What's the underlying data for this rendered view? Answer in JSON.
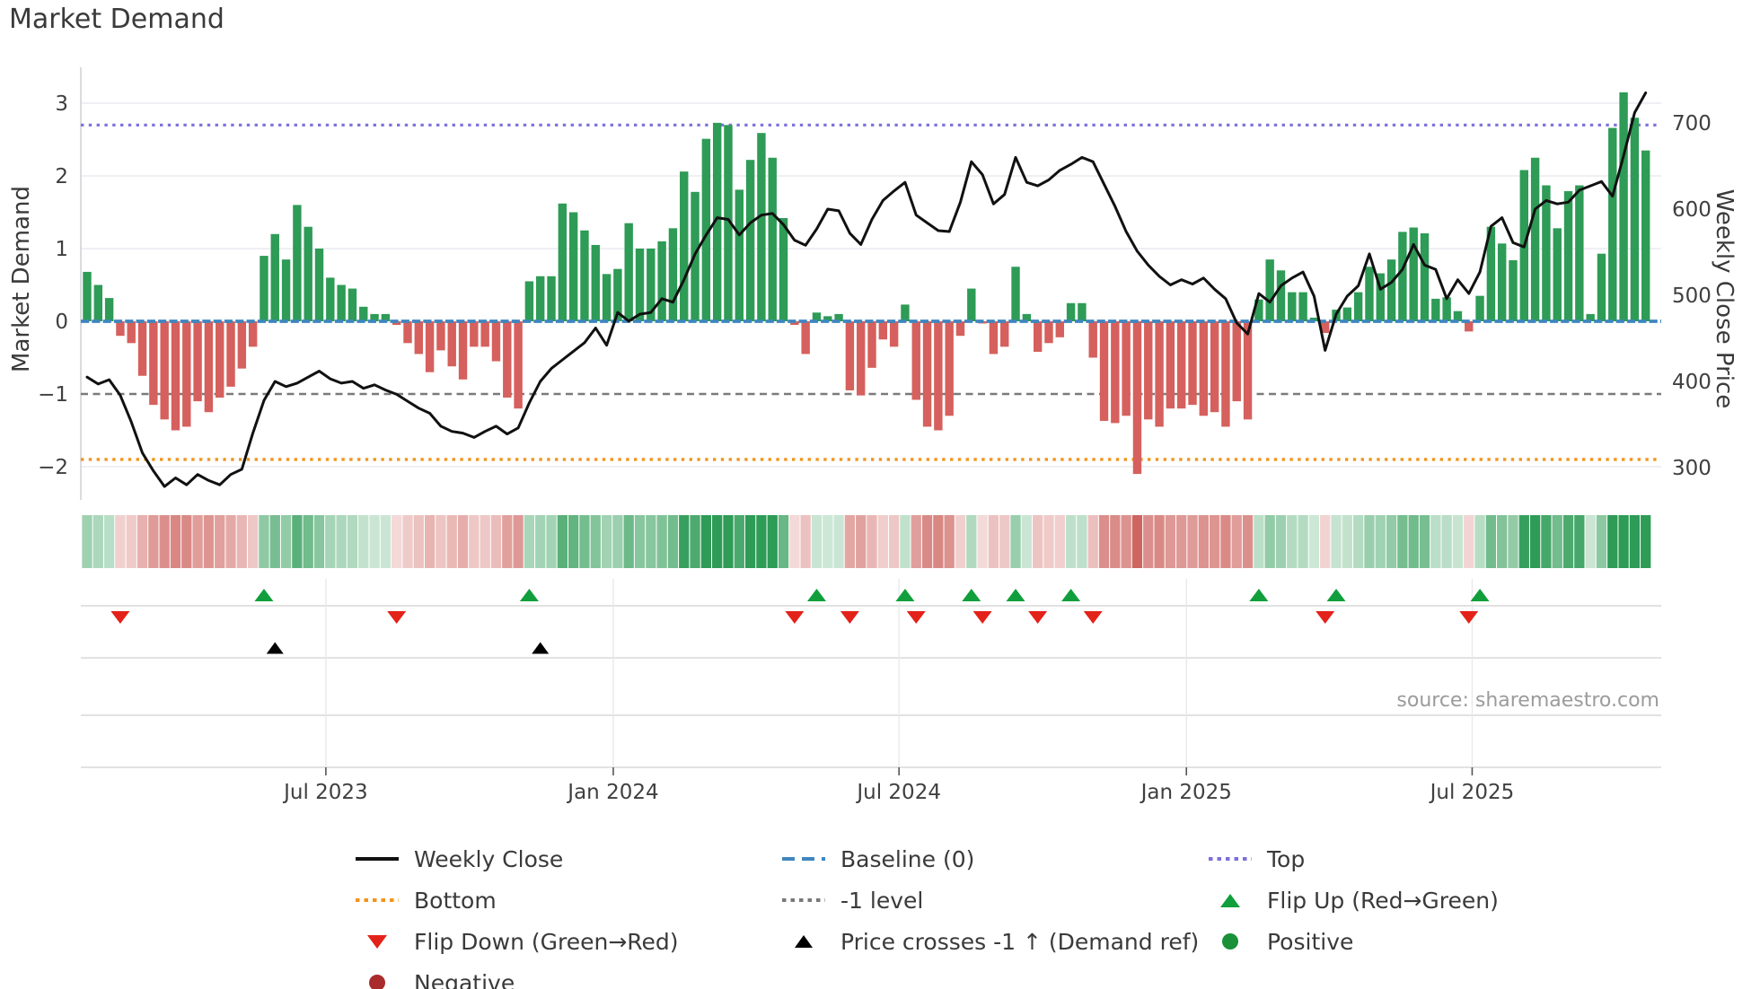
{
  "title": "Market Demand",
  "source": "source: sharemaestro.com",
  "axes": {
    "left_label": "Market Demand",
    "right_label": "Weekly Close Price",
    "left_ticks": [
      "3",
      "2",
      "1",
      "0",
      "−1",
      "−2"
    ],
    "left_tick_values": [
      3,
      2,
      1,
      0,
      -1,
      -2
    ],
    "right_ticks": [
      "700",
      "600",
      "500",
      "400",
      "300"
    ],
    "right_tick_values": [
      700,
      600,
      500,
      400,
      300
    ],
    "x_ticks": [
      "Jul 2023",
      "Jan 2024",
      "Jul 2024",
      "Jan 2025",
      "Jul 2025"
    ]
  },
  "colors": {
    "bar_green": "#2e9b56",
    "bar_red": "#d5605d",
    "price_line": "#111111",
    "baseline": "#3f86c0",
    "top_line": "#7b70da",
    "bottom_line": "#f2941c",
    "minus1_line": "#7a7a7a",
    "flip_up": "#109f3c",
    "flip_down": "#e32219",
    "price_cross": "#000000",
    "positive": "#1a9138",
    "negative": "#aa2b2b",
    "grid": "#eaeaf1",
    "panel_grid": "#d8d8d8",
    "tick_text": "#3f3f3f"
  },
  "legend": {
    "items": [
      {
        "label": "Weekly Close",
        "swatch": "line-black"
      },
      {
        "label": "Bottom",
        "swatch": "dot-orange"
      },
      {
        "label": "Flip Down (Green→Red)",
        "swatch": "tri-down-red"
      },
      {
        "label": "Negative",
        "swatch": "circle-red"
      },
      {
        "label": "Baseline (0)",
        "swatch": "dash-blue"
      },
      {
        "label": "-1 level",
        "swatch": "dot-gray"
      },
      {
        "label": "Price crosses -1 ↑ (Demand ref)",
        "swatch": "tri-up-black"
      },
      {
        "label": "Top",
        "swatch": "dot-purple"
      },
      {
        "label": "Flip Up (Red→Green)",
        "swatch": "tri-up-green"
      },
      {
        "label": "Positive",
        "swatch": "circle-green"
      }
    ]
  },
  "chart_data": {
    "type": "bar+line",
    "title": "Market Demand",
    "ylabel_left": "Market Demand",
    "ylabel_right": "Weekly Close Price",
    "ylim_left": [
      -2.5,
      3.5
    ],
    "ylim_right": [
      260,
      765
    ],
    "x_tick_labels": [
      "Jul 2023",
      "Jan 2024",
      "Jul 2024",
      "Jan 2025",
      "Jul 2025"
    ],
    "x_tick_weeks": [
      21.6,
      47.6,
      73.45,
      99.45,
      125.3
    ],
    "reference_lines": {
      "top": 2.7,
      "baseline": 0,
      "minus1": -1,
      "bottom": -1.9
    },
    "demand": [
      0.68,
      0.5,
      0.32,
      -0.2,
      -0.3,
      -0.75,
      -1.15,
      -1.35,
      -1.5,
      -1.45,
      -1.1,
      -1.25,
      -1.05,
      -0.9,
      -0.65,
      -0.35,
      0.9,
      1.2,
      0.85,
      1.6,
      1.3,
      1.0,
      0.6,
      0.5,
      0.45,
      0.2,
      0.1,
      0.1,
      -0.05,
      -0.3,
      -0.45,
      -0.7,
      -0.4,
      -0.62,
      -0.8,
      -0.35,
      -0.35,
      -0.55,
      -1.05,
      -1.2,
      0.55,
      0.62,
      0.62,
      1.62,
      1.5,
      1.25,
      1.05,
      0.65,
      0.72,
      1.35,
      1.0,
      1.0,
      1.1,
      1.28,
      2.06,
      1.78,
      2.51,
      2.73,
      2.7,
      1.81,
      2.22,
      2.59,
      2.25,
      1.42,
      -0.05,
      -0.45,
      0.12,
      0.07,
      0.1,
      -0.95,
      -1.02,
      -0.64,
      -0.25,
      -0.35,
      0.23,
      -1.08,
      -1.45,
      -1.5,
      -1.3,
      -0.2,
      0.45,
      -0.03,
      -0.45,
      -0.35,
      0.75,
      0.1,
      -0.42,
      -0.3,
      -0.22,
      0.25,
      0.25,
      -0.5,
      -1.37,
      -1.4,
      -1.3,
      -2.1,
      -1.35,
      -1.45,
      -1.2,
      -1.2,
      -1.15,
      -1.3,
      -1.25,
      -1.45,
      -1.1,
      -1.35,
      0.3,
      0.85,
      0.7,
      0.4,
      0.4,
      0.05,
      -0.16,
      0.16,
      0.19,
      0.4,
      0.75,
      0.66,
      0.85,
      1.23,
      1.29,
      1.21,
      0.31,
      0.33,
      0.14,
      -0.14,
      0.35,
      1.3,
      1.07,
      0.84,
      2.08,
      2.25,
      1.87,
      1.28,
      1.79,
      1.87,
      0.1,
      0.93,
      2.66,
      3.15,
      2.8,
      2.35
    ],
    "price": [
      405,
      397,
      402,
      384,
      353,
      317,
      296,
      278,
      288,
      280,
      292,
      285,
      280,
      292,
      298,
      340,
      378,
      400,
      394,
      398,
      405,
      412,
      403,
      398,
      400,
      392,
      396,
      390,
      385,
      377,
      369,
      363,
      348,
      342,
      340,
      335,
      342,
      348,
      339,
      346,
      375,
      400,
      415,
      425,
      435,
      445,
      462,
      442,
      480,
      470,
      478,
      480,
      496,
      492,
      518,
      548,
      570,
      590,
      588,
      570,
      584,
      593,
      595,
      582,
      564,
      558,
      577,
      600,
      598,
      572,
      559,
      588,
      610,
      621,
      631,
      593,
      584,
      575,
      574,
      608,
      655,
      640,
      606,
      617,
      660,
      631,
      627,
      634,
      645,
      652,
      660,
      655,
      629,
      603,
      574,
      551,
      535,
      522,
      512,
      518,
      513,
      520,
      507,
      496,
      468,
      455,
      502,
      492,
      511,
      520,
      527,
      499,
      436,
      478,
      499,
      511,
      548,
      507,
      515,
      530,
      559,
      535,
      530,
      496,
      518,
      502,
      527,
      580,
      590,
      561,
      556,
      600,
      610,
      606,
      608,
      622,
      627,
      632,
      615,
      662,
      712,
      735
    ],
    "markers": {
      "flip_up_weeks": [
        16,
        40,
        66,
        74,
        80,
        84,
        89,
        106,
        113,
        126
      ],
      "flip_down_weeks": [
        3,
        28,
        64,
        69,
        75,
        81,
        86,
        91,
        112,
        125
      ],
      "price_cross_weeks": [
        17,
        41
      ]
    },
    "heatmap": "sign+magnitude of demand per week, green positive / red negative"
  }
}
